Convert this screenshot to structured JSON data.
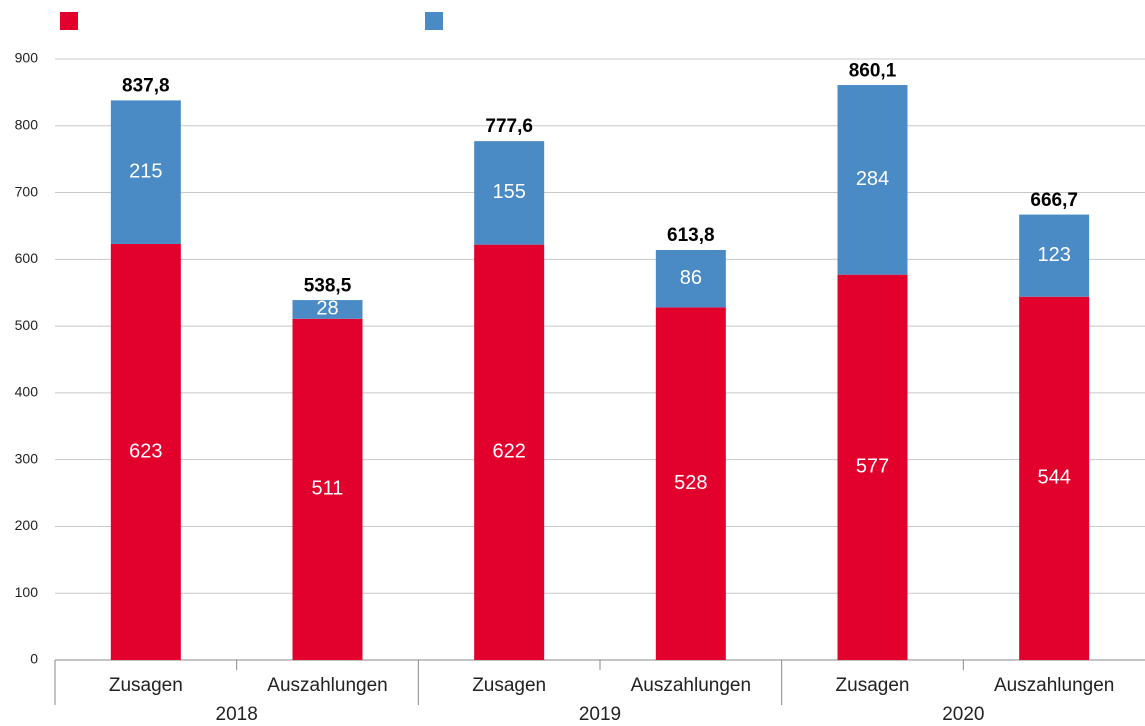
{
  "chart_data": {
    "type": "stacked_bar",
    "groups": [
      "2018",
      "2019",
      "2020"
    ],
    "categories": [
      "Zusagen",
      "Auszahlungen",
      "Zusagen",
      "Auszahlungen",
      "Zusagen",
      "Auszahlungen"
    ],
    "series": [
      {
        "color": "#e2002d",
        "values": [
          623,
          511,
          622,
          528,
          577,
          544
        ]
      },
      {
        "color": "#4a8bc6",
        "values": [
          215,
          28,
          155,
          86,
          284,
          123
        ]
      }
    ],
    "totals": [
      837.8,
      538.5,
      777.6,
      613.8,
      860.1,
      666.7
    ],
    "total_labels": [
      "837,8",
      "538,5",
      "777,6",
      "613,8",
      "860,1",
      "666,7"
    ],
    "ylim": [
      0,
      900
    ],
    "yticks": [
      0,
      100,
      200,
      300,
      400,
      500,
      600,
      700,
      800,
      900
    ],
    "grid": true
  }
}
